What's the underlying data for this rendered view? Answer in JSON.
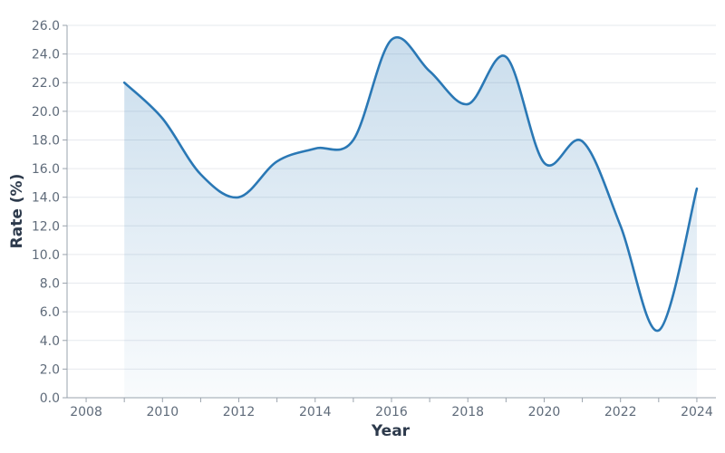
{
  "chart_data": {
    "type": "area",
    "title": "",
    "xlabel": "Year",
    "ylabel": "Rate (%)",
    "xlim": [
      2007.5,
      2024.5
    ],
    "ylim": [
      0,
      26
    ],
    "x_ticks": [
      "2008",
      "2010",
      "2012",
      "2014",
      "2016",
      "2018",
      "2020",
      "2022",
      "2024"
    ],
    "y_ticks": [
      "0.0",
      "2.0",
      "4.0",
      "6.0",
      "8.0",
      "10.0",
      "12.0",
      "14.0",
      "16.0",
      "18.0",
      "20.0",
      "22.0",
      "24.0",
      "26.0"
    ],
    "grid": true,
    "series": [
      {
        "x": [
          2009,
          2010,
          2011,
          2012,
          2013,
          2014,
          2015,
          2016,
          2017,
          2018,
          2019,
          2020,
          2021,
          2022,
          2023,
          2024
        ],
        "values": [
          22.0,
          19.5,
          15.6,
          14.0,
          16.5,
          17.4,
          18.0,
          25.0,
          22.8,
          20.5,
          23.8,
          16.4,
          17.9,
          12.0,
          4.7,
          14.6
        ]
      }
    ],
    "line_color": "#2a78b5",
    "fill_color": "#2a78b5"
  }
}
